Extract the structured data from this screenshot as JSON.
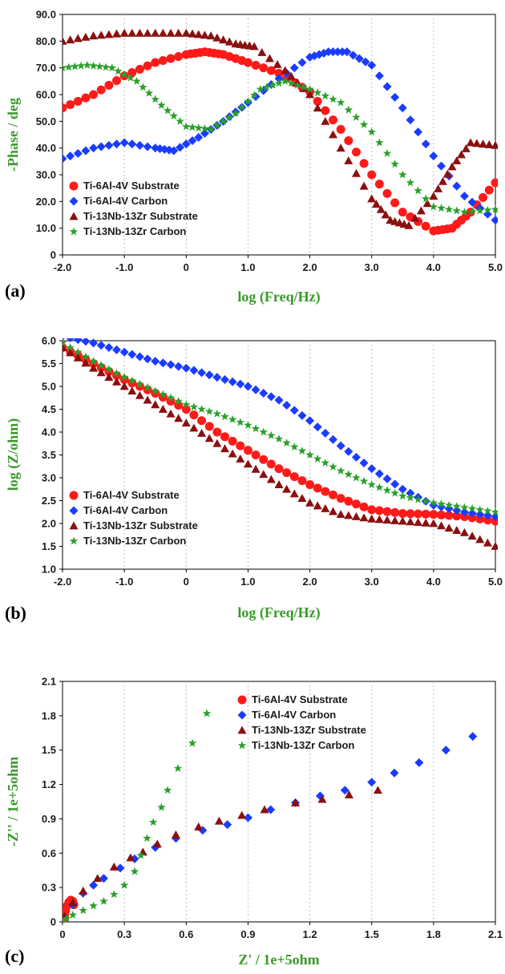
{
  "colors": {
    "substrate_64": "#ff1a1a",
    "carbon_64": "#1a3cff",
    "substrate_1313": "#8b0f0f",
    "carbon_1313": "#2aa02a",
    "axis_label": "#3a9a2a"
  },
  "series_names": [
    "Ti-6Al-4V Substrate",
    "Ti-6Al-4V Carbon",
    "Ti-13Nb-13Zr Substrate",
    "Ti-13Nb-13Zr Carbon"
  ],
  "chart_data": [
    {
      "type": "scatter",
      "panel_label": "(a)",
      "xlabel": "log (Freq/Hz)",
      "ylabel": "-Phase / deg",
      "xlim": [
        -2.0,
        5.0
      ],
      "ylim": [
        0,
        90
      ],
      "xticks": [
        "-2.0",
        "-1.0",
        "0",
        "1.0",
        "2.0",
        "3.0",
        "4.0",
        "5.0"
      ],
      "yticks": [
        "0",
        "10.0",
        "20.0",
        "30.0",
        "40.0",
        "50.0",
        "60.0",
        "70.0",
        "80.0",
        "90.0"
      ],
      "grid": "vertical",
      "legend_position": "bottom-left",
      "series": [
        {
          "name": "Ti-6Al-4V Substrate",
          "marker": "circle",
          "points": [
            [
              -2,
              55
            ],
            [
              -1.5,
              60
            ],
            [
              -1,
              67
            ],
            [
              -0.5,
              72
            ],
            [
              0,
              75
            ],
            [
              0.3,
              76
            ],
            [
              0.6,
              75
            ],
            [
              1,
              72
            ],
            [
              1.5,
              68
            ],
            [
              2,
              61
            ],
            [
              2.5,
              47
            ],
            [
              3,
              30
            ],
            [
              3.5,
              16
            ],
            [
              4,
              9
            ],
            [
              4.3,
              10
            ],
            [
              4.6,
              16
            ],
            [
              5,
              27
            ]
          ]
        },
        {
          "name": "Ti-6Al-4V Carbon",
          "marker": "diamond",
          "points": [
            [
              -2,
              36
            ],
            [
              -1.5,
              40
            ],
            [
              -1,
              42
            ],
            [
              -0.5,
              40
            ],
            [
              -0.2,
              39
            ],
            [
              0.2,
              44
            ],
            [
              0.6,
              50
            ],
            [
              1,
              57
            ],
            [
              1.5,
              66
            ],
            [
              2,
              74
            ],
            [
              2.3,
              76
            ],
            [
              2.6,
              76
            ],
            [
              3,
              71
            ],
            [
              3.5,
              55
            ],
            [
              4,
              37
            ],
            [
              4.5,
              22
            ],
            [
              5,
              13
            ]
          ]
        },
        {
          "name": "Ti-13Nb-13Zr Substrate",
          "marker": "triangle",
          "points": [
            [
              -2,
              80
            ],
            [
              -1.5,
              82
            ],
            [
              -1,
              83
            ],
            [
              -0.5,
              83
            ],
            [
              0,
              83
            ],
            [
              0.4,
              82
            ],
            [
              0.8,
              79
            ],
            [
              1.1,
              78
            ],
            [
              1.6,
              69
            ],
            [
              2,
              60
            ],
            [
              2.5,
              40
            ],
            [
              3,
              21
            ],
            [
              3.3,
              13
            ],
            [
              3.6,
              11
            ],
            [
              4,
              22
            ],
            [
              4.3,
              33
            ],
            [
              4.6,
              42
            ],
            [
              5,
              41
            ]
          ]
        },
        {
          "name": "Ti-13Nb-13Zr Carbon",
          "marker": "star",
          "points": [
            [
              -2,
              70
            ],
            [
              -1.6,
              71
            ],
            [
              -1.2,
              70
            ],
            [
              -0.8,
              65
            ],
            [
              -0.4,
              56
            ],
            [
              0,
              48
            ],
            [
              0.4,
              47
            ],
            [
              0.8,
              53
            ],
            [
              1.2,
              62
            ],
            [
              1.6,
              65
            ],
            [
              2,
              62
            ],
            [
              2.5,
              57
            ],
            [
              3,
              46
            ],
            [
              3.5,
              30
            ],
            [
              4,
              18
            ],
            [
              4.5,
              16
            ],
            [
              5,
              17
            ]
          ]
        }
      ]
    },
    {
      "type": "scatter",
      "panel_label": "(b)",
      "xlabel": "log (Freq/Hz)",
      "ylabel": "log (Z/ohm)",
      "xlim": [
        -2.0,
        5.0
      ],
      "ylim": [
        1.0,
        6.0
      ],
      "xticks": [
        "-2.0",
        "-1.0",
        "0",
        "1.0",
        "2.0",
        "3.0",
        "4.0",
        "5.0"
      ],
      "yticks": [
        "1.0",
        "1.5",
        "2.0",
        "2.5",
        "3.0",
        "3.5",
        "4.0",
        "4.5",
        "5.0",
        "5.5",
        "6.0"
      ],
      "grid": "vertical",
      "legend_position": "bottom-left",
      "series": [
        {
          "name": "Ti-6Al-4V Substrate",
          "marker": "circle",
          "points": [
            [
              -2,
              5.85
            ],
            [
              -1.5,
              5.5
            ],
            [
              -1,
              5.15
            ],
            [
              -0.5,
              4.85
            ],
            [
              0,
              4.5
            ],
            [
              0.5,
              4.0
            ],
            [
              1,
              3.6
            ],
            [
              1.5,
              3.2
            ],
            [
              2,
              2.85
            ],
            [
              2.5,
              2.55
            ],
            [
              3,
              2.3
            ],
            [
              3.5,
              2.22
            ],
            [
              4,
              2.2
            ],
            [
              4.5,
              2.15
            ],
            [
              5,
              2.05
            ]
          ]
        },
        {
          "name": "Ti-6Al-4V Carbon",
          "marker": "diamond",
          "points": [
            [
              -2,
              6.1
            ],
            [
              -1.5,
              5.95
            ],
            [
              -1,
              5.75
            ],
            [
              -0.5,
              5.55
            ],
            [
              0,
              5.4
            ],
            [
              0.5,
              5.2
            ],
            [
              1,
              5.0
            ],
            [
              1.5,
              4.7
            ],
            [
              2,
              4.25
            ],
            [
              2.5,
              3.7
            ],
            [
              3,
              3.2
            ],
            [
              3.5,
              2.75
            ],
            [
              4,
              2.4
            ],
            [
              4.5,
              2.25
            ],
            [
              5,
              2.15
            ]
          ]
        },
        {
          "name": "Ti-13Nb-13Zr Substrate",
          "marker": "triangle",
          "points": [
            [
              -2,
              5.85
            ],
            [
              -1.5,
              5.4
            ],
            [
              -1,
              5.0
            ],
            [
              -0.5,
              4.6
            ],
            [
              0,
              4.2
            ],
            [
              0.5,
              3.75
            ],
            [
              1,
              3.3
            ],
            [
              1.5,
              2.85
            ],
            [
              2,
              2.45
            ],
            [
              2.5,
              2.2
            ],
            [
              3,
              2.1
            ],
            [
              3.5,
              2.05
            ],
            [
              4,
              2.0
            ],
            [
              4.5,
              1.8
            ],
            [
              5,
              1.5
            ]
          ]
        },
        {
          "name": "Ti-13Nb-13Zr Carbon",
          "marker": "star",
          "points": [
            [
              -2,
              5.95
            ],
            [
              -1.5,
              5.55
            ],
            [
              -1,
              5.2
            ],
            [
              -0.5,
              4.9
            ],
            [
              0,
              4.6
            ],
            [
              0.5,
              4.4
            ],
            [
              1,
              4.15
            ],
            [
              1.5,
              3.85
            ],
            [
              2,
              3.5
            ],
            [
              2.5,
              3.15
            ],
            [
              3,
              2.85
            ],
            [
              3.5,
              2.6
            ],
            [
              4,
              2.45
            ],
            [
              4.5,
              2.35
            ],
            [
              5,
              2.25
            ]
          ]
        }
      ]
    },
    {
      "type": "scatter",
      "panel_label": "(c)",
      "xlabel": "Z' / 1e+5ohm",
      "ylabel": "-Z'' / 1e+5ohm",
      "xlim": [
        0,
        2.1
      ],
      "ylim": [
        0,
        2.1
      ],
      "xticks": [
        "0",
        "0.3",
        "0.6",
        "0.9",
        "1.2",
        "1.5",
        "1.8",
        "2.1"
      ],
      "yticks": [
        "0",
        "0.3",
        "0.6",
        "0.9",
        "1.2",
        "1.5",
        "1.8",
        "2.1"
      ],
      "grid": "vertical",
      "legend_position": "top-center",
      "series": [
        {
          "name": "Ti-6Al-4V Substrate",
          "marker": "circle",
          "points": [
            [
              0.005,
              0.02
            ],
            [
              0.01,
              0.06
            ],
            [
              0.015,
              0.1
            ],
            [
              0.022,
              0.14
            ],
            [
              0.03,
              0.17
            ],
            [
              0.04,
              0.19
            ],
            [
              0.05,
              0.18
            ],
            [
              0.055,
              0.15
            ]
          ]
        },
        {
          "name": "Ti-6Al-4V Carbon",
          "marker": "diamond",
          "points": [
            [
              0.01,
              0.04
            ],
            [
              0.05,
              0.15
            ],
            [
              0.1,
              0.25
            ],
            [
              0.15,
              0.32
            ],
            [
              0.2,
              0.38
            ],
            [
              0.28,
              0.47
            ],
            [
              0.35,
              0.55
            ],
            [
              0.45,
              0.65
            ],
            [
              0.55,
              0.73
            ],
            [
              0.68,
              0.8
            ],
            [
              0.8,
              0.85
            ],
            [
              0.9,
              0.91
            ],
            [
              1.01,
              0.98
            ],
            [
              1.13,
              1.04
            ],
            [
              1.25,
              1.1
            ],
            [
              1.37,
              1.15
            ],
            [
              1.5,
              1.22
            ],
            [
              1.61,
              1.3
            ],
            [
              1.73,
              1.39
            ],
            [
              1.86,
              1.5
            ],
            [
              1.99,
              1.62
            ]
          ]
        },
        {
          "name": "Ti-13Nb-13Zr Substrate",
          "marker": "triangle",
          "points": [
            [
              0.01,
              0.05
            ],
            [
              0.05,
              0.17
            ],
            [
              0.1,
              0.27
            ],
            [
              0.17,
              0.38
            ],
            [
              0.25,
              0.48
            ],
            [
              0.33,
              0.56
            ],
            [
              0.39,
              0.61
            ],
            [
              0.46,
              0.68
            ],
            [
              0.55,
              0.76
            ],
            [
              0.66,
              0.83
            ],
            [
              0.76,
              0.88
            ],
            [
              0.87,
              0.93
            ],
            [
              0.98,
              0.98
            ],
            [
              1.13,
              1.04
            ],
            [
              1.26,
              1.07
            ],
            [
              1.39,
              1.11
            ],
            [
              1.53,
              1.15
            ]
          ]
        },
        {
          "name": "Ti-13Nb-13Zr Carbon",
          "marker": "star",
          "points": [
            [
              0.005,
              0.01
            ],
            [
              0.02,
              0.03
            ],
            [
              0.05,
              0.06
            ],
            [
              0.1,
              0.1
            ],
            [
              0.15,
              0.14
            ],
            [
              0.2,
              0.18
            ],
            [
              0.25,
              0.24
            ],
            [
              0.3,
              0.32
            ],
            [
              0.35,
              0.44
            ],
            [
              0.38,
              0.58
            ],
            [
              0.41,
              0.73
            ],
            [
              0.44,
              0.87
            ],
            [
              0.48,
              1.0
            ],
            [
              0.51,
              1.15
            ],
            [
              0.56,
              1.34
            ],
            [
              0.63,
              1.56
            ],
            [
              0.7,
              1.82
            ]
          ]
        }
      ]
    }
  ]
}
